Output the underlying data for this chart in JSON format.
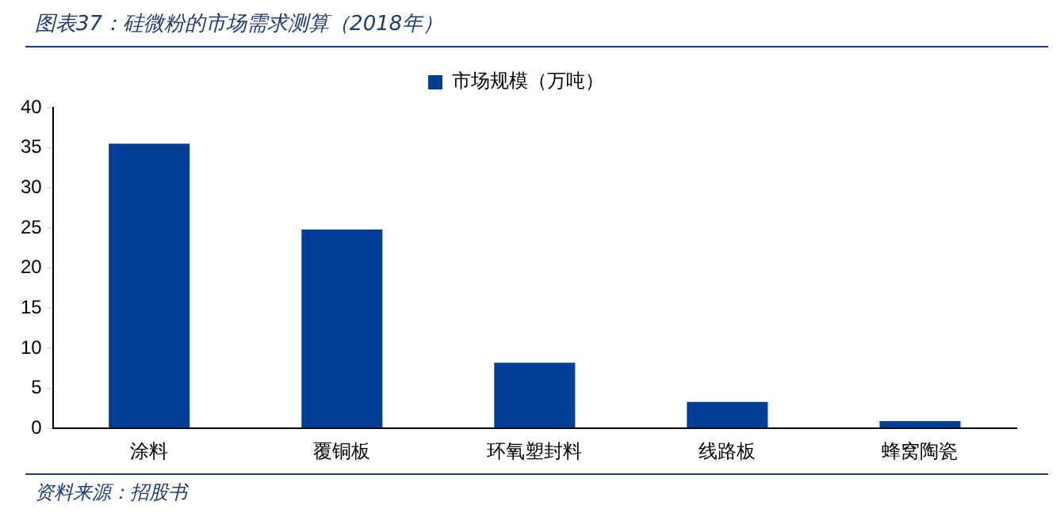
{
  "chart_data": {
    "type": "bar",
    "title": "图表37：硅微粉的市场需求测算（2018年）",
    "categories": [
      "涂料",
      "覆铜板",
      "环氧塑封料",
      "线路板",
      "蜂窝陶瓷"
    ],
    "series": [
      {
        "name": "市场规模（万吨）",
        "color": "#003f98",
        "values": [
          35.5,
          24.8,
          8.2,
          3.3,
          0.9
        ]
      }
    ],
    "ylim": [
      0,
      40
    ],
    "yticks": [
      0,
      5,
      10,
      15,
      20,
      25,
      30,
      35,
      40
    ],
    "grid": false,
    "legend": "top",
    "annotations": [
      "资料来源：招股书"
    ]
  }
}
